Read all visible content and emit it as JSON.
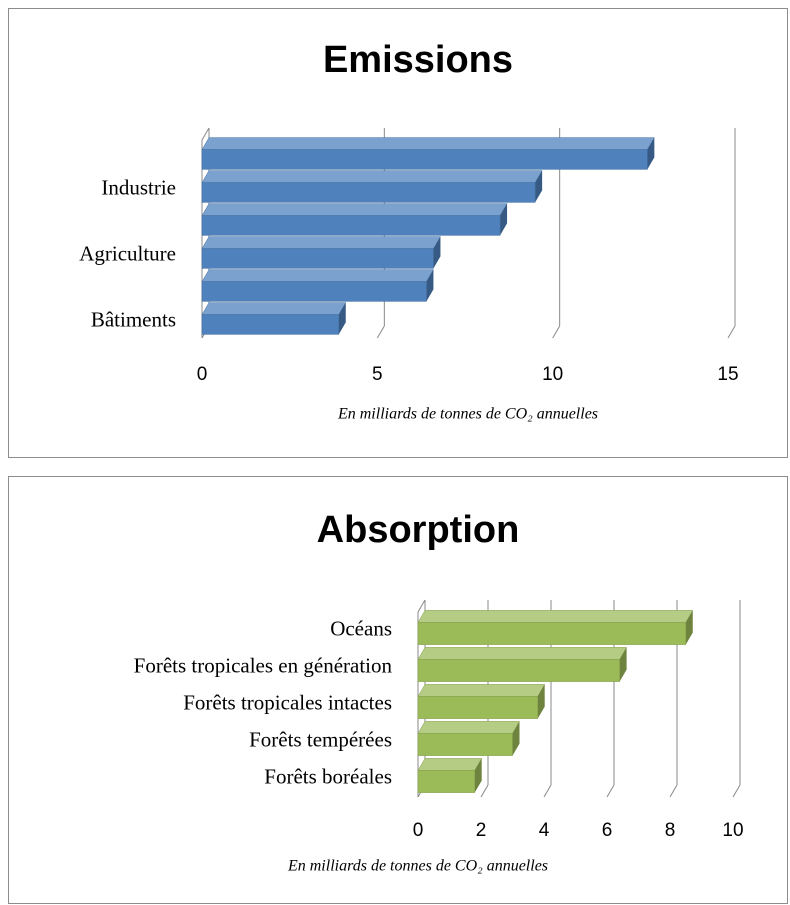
{
  "chart_data": [
    {
      "type": "bar",
      "orientation": "horizontal",
      "title": "Emissions",
      "categories": [
        null,
        "Industrie",
        null,
        "Agriculture",
        null,
        "Bâtiments"
      ],
      "values": [
        12.7,
        9.5,
        8.5,
        6.6,
        6.4,
        3.9
      ],
      "color": "#4f81bd",
      "xlim": [
        0,
        15
      ],
      "xticks": [
        0,
        5,
        10,
        15
      ],
      "grid": true,
      "x_label": "En milliards de tonnes de CO₂ annuelles"
    },
    {
      "type": "bar",
      "orientation": "horizontal",
      "title": "Absorption",
      "categories": [
        "Océans",
        "Forêts tropicales en génération",
        "Forêts tropicales intactes",
        "Forêts tempérées",
        "Forêts boréales"
      ],
      "values": [
        8.5,
        6.4,
        3.8,
        3.0,
        1.8
      ],
      "color": "#9bbb59",
      "xlim": [
        0,
        10
      ],
      "xticks": [
        0,
        2,
        4,
        6,
        8,
        10
      ],
      "grid": true,
      "x_label": "En milliards de tonnes de CO₂ annuelles"
    }
  ]
}
